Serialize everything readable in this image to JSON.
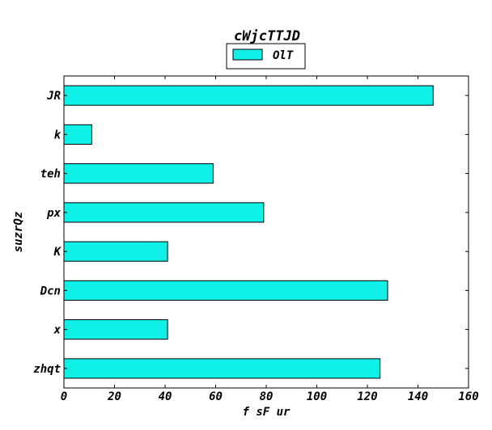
{
  "chart_data": {
    "type": "bar",
    "orientation": "horizontal",
    "title": "cWjcTTJD",
    "xlabel": "f sF ur",
    "ylabel": "suzrQz",
    "categories": [
      "zhqt",
      "x",
      "Dcn",
      "K",
      "px",
      "teh",
      "k",
      "JR"
    ],
    "series": [
      {
        "name": "OlT",
        "values": [
          125,
          41,
          128,
          41,
          79,
          59,
          11,
          146
        ]
      }
    ],
    "xlim": [
      0,
      160
    ],
    "xticks": [
      0,
      20,
      40,
      60,
      80,
      100,
      120,
      140,
      160
    ],
    "grid": false,
    "legend_position": "top-center",
    "colors": {
      "bar": "#0ff0e6",
      "edge": "#000000"
    }
  }
}
